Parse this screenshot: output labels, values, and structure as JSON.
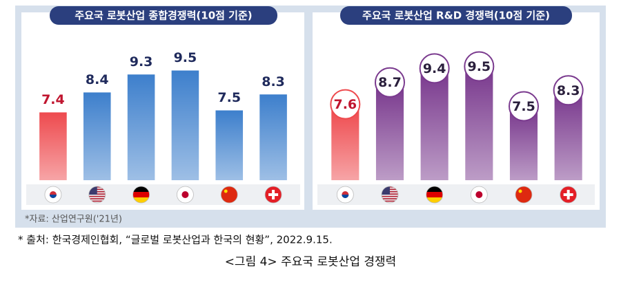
{
  "chart_data": [
    {
      "type": "bar",
      "title": "주요국 로봇산업 종합경쟁력(10점 기준)",
      "categories": [
        null,
        null,
        null,
        null,
        null,
        null
      ],
      "values": [
        7.4,
        8.4,
        9.3,
        9.5,
        7.5,
        8.3
      ],
      "colors": [
        "#ee4a4e",
        "#3d7fcc",
        "#3d7fcc",
        "#3d7fcc",
        "#3d7fcc",
        "#3d7fcc"
      ],
      "label_colors": [
        "#c0152f",
        "#1f2a5c",
        "#1f2a5c",
        "#1f2a5c",
        "#1f2a5c",
        "#1f2a5c"
      ],
      "ylim": [
        4,
        10
      ]
    },
    {
      "type": "bubble-bar",
      "title": "주요국 로봇산업 R&D 경쟁력(10점 기준)",
      "categories": [
        null,
        null,
        null,
        null,
        null,
        null
      ],
      "values": [
        7.6,
        8.7,
        9.4,
        9.5,
        7.5,
        8.3
      ],
      "colors": [
        "#ee4a4e",
        "#7a3a8e",
        "#7a3a8e",
        "#7a3a8e",
        "#7a3a8e",
        "#7a3a8e"
      ],
      "label_colors": [
        "#c0152f",
        "#2a1f3c",
        "#2a1f3c",
        "#2a1f3c",
        "#2a1f3c",
        "#2a1f3c"
      ],
      "ylim": [
        4,
        10
      ]
    }
  ],
  "source": "*자료: 산업연구원('21년)",
  "footnote": "* 출처: 한국경제인협회, “글로벌 로봇산업과 한국의 현황”, 2022.9.15.",
  "caption": "<그림 4> 주요국 로봇산업 경쟁력"
}
